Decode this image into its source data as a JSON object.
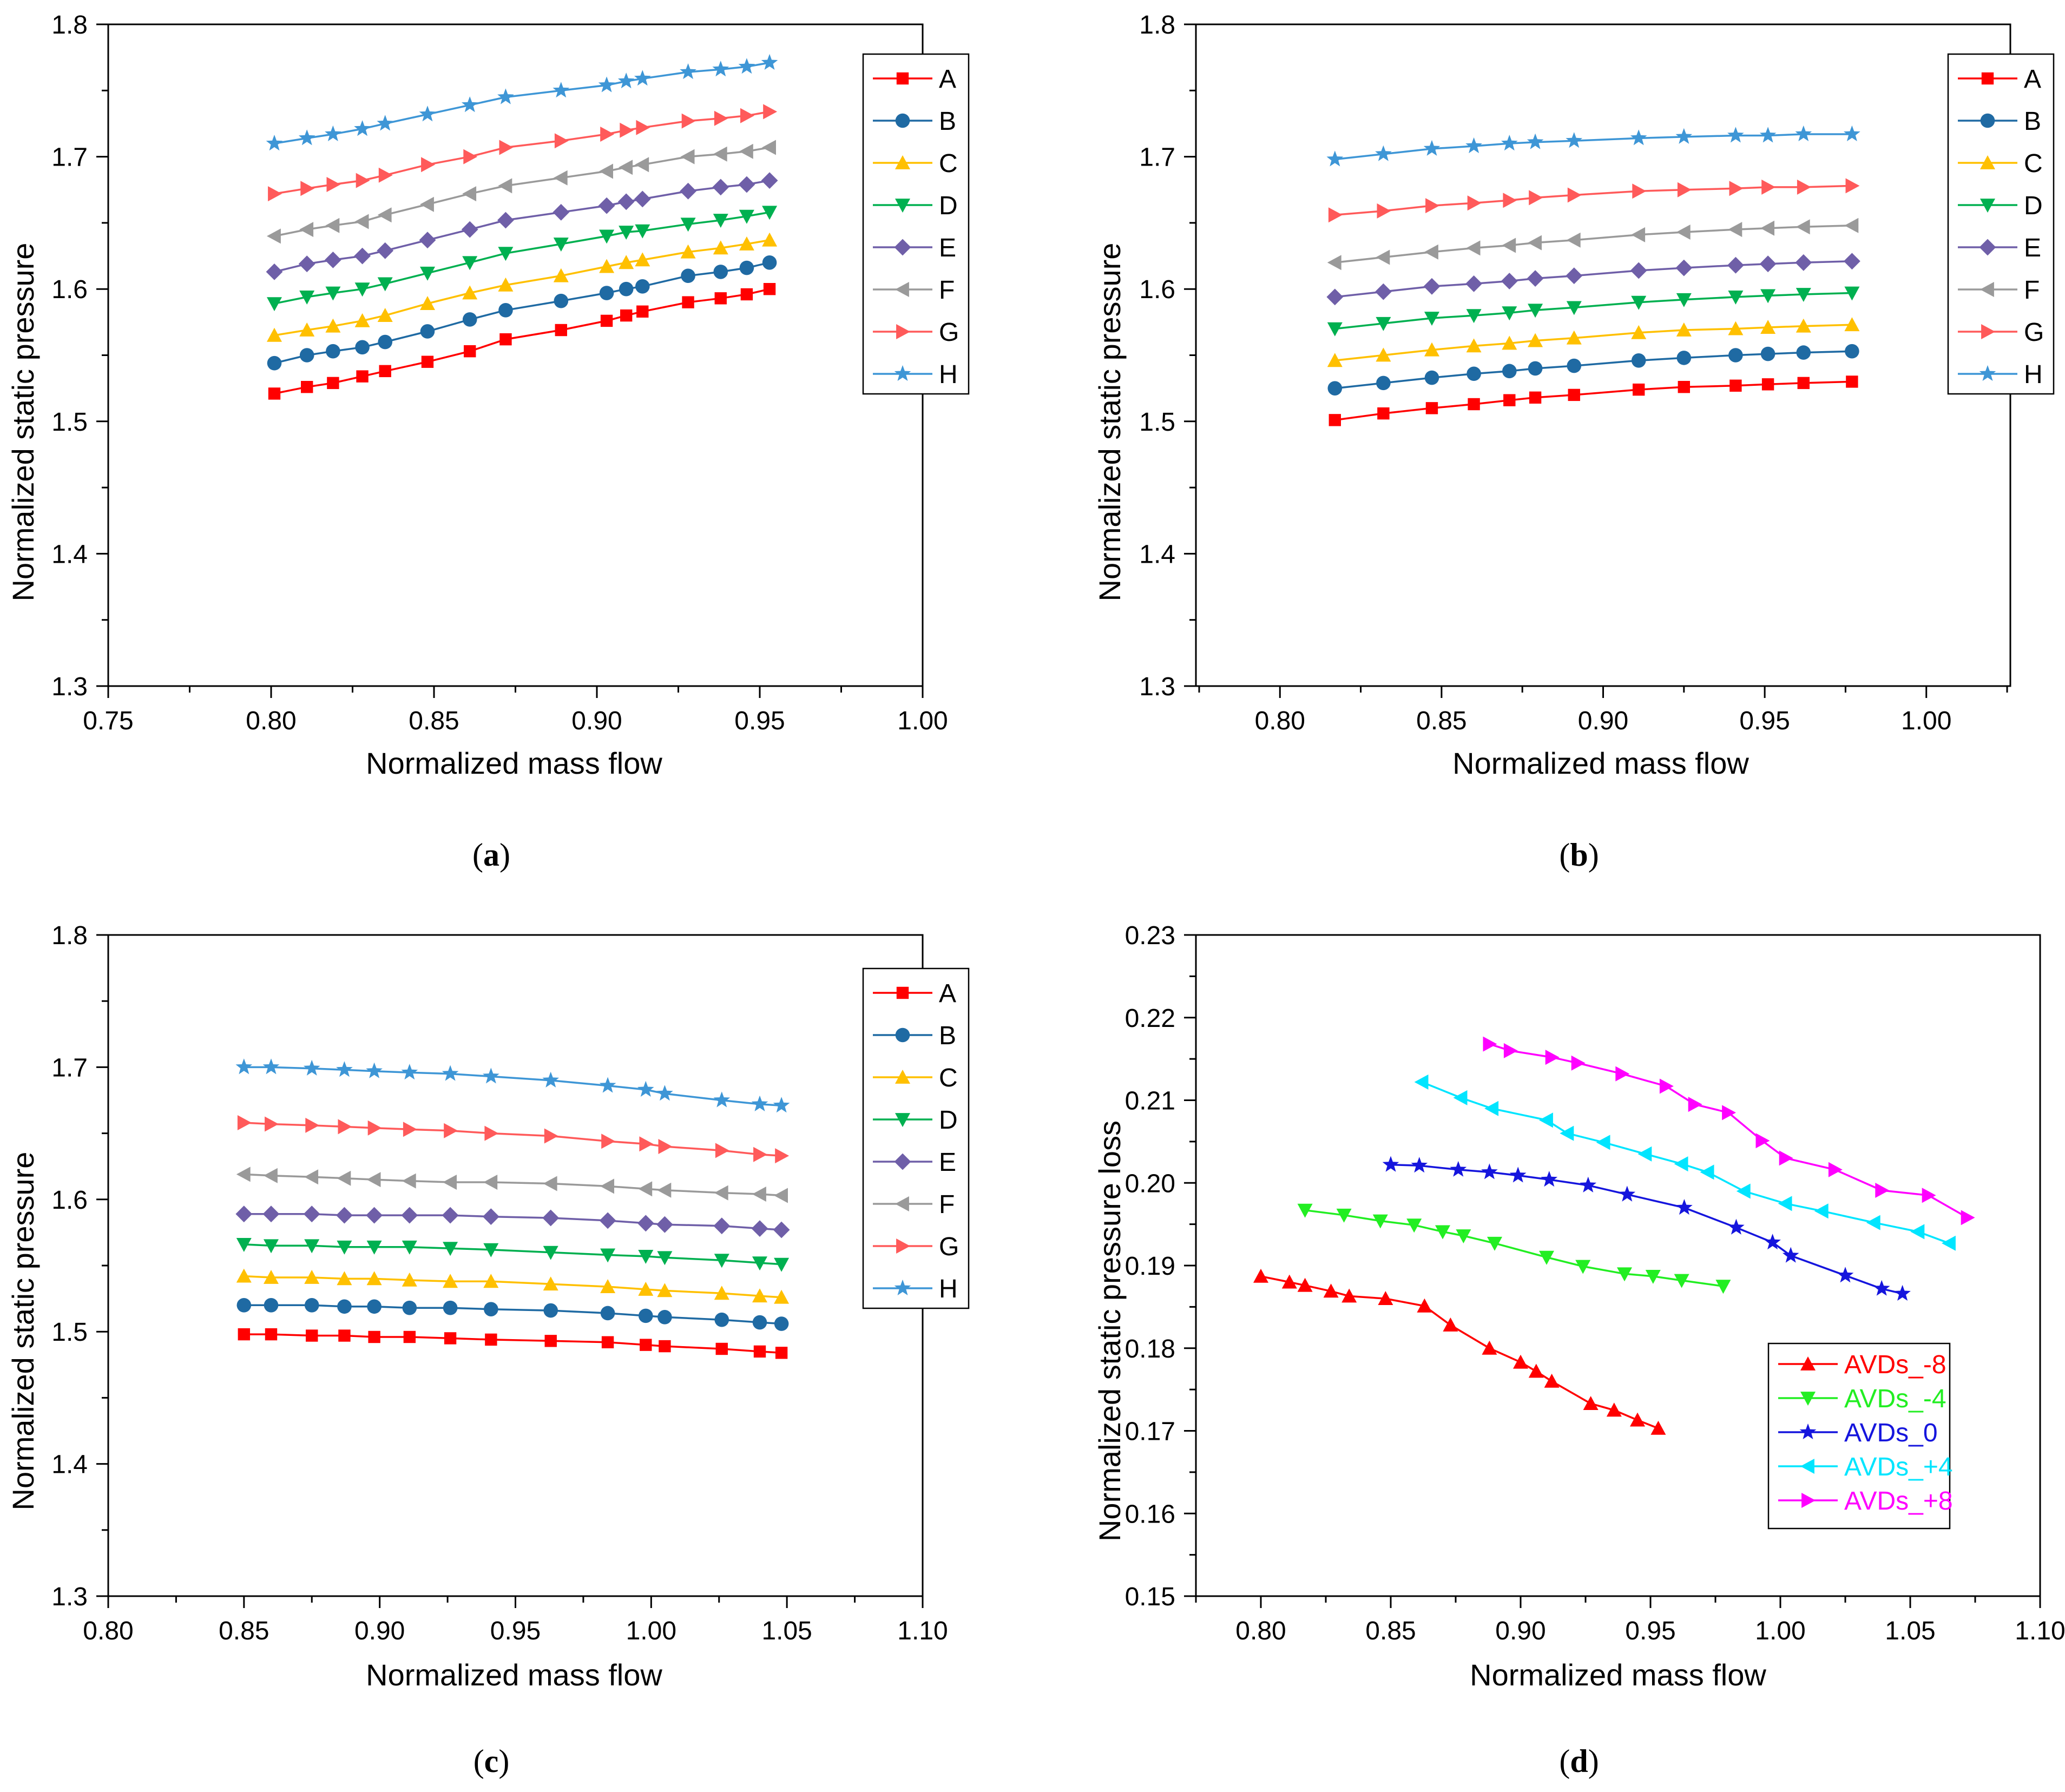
{
  "colors": {
    "A": "#ff0000",
    "B": "#1f6aa3",
    "C": "#ffc000",
    "D": "#00b050",
    "E": "#6f5fa8",
    "F": "#9a9a9a",
    "G": "#ff5a5a",
    "H": "#3e96d6",
    "AVDs_-8": "#ff0000",
    "AVDs_-4": "#22ee22",
    "AVDs_0": "#1515dd",
    "AVDs_+4": "#00e5ff",
    "AVDs_+8": "#ff00ff"
  },
  "chart_data": [
    {
      "id": "a",
      "type": "line",
      "caption": "a",
      "xlabel": "Normalized mass flow",
      "ylabel": "Normalized static pressure",
      "xlim": [
        0.75,
        1.0
      ],
      "ylim": [
        1.3,
        1.8
      ],
      "xticks": [
        "0.75",
        "0.80",
        "0.85",
        "0.90",
        "0.95",
        "1.00"
      ],
      "yticks": [
        "1.3",
        "1.4",
        "1.5",
        "1.6",
        "1.7",
        "1.8"
      ],
      "legend_position": "top-right",
      "x": [
        0.801,
        0.811,
        0.819,
        0.828,
        0.835,
        0.848,
        0.861,
        0.872,
        0.889,
        0.903,
        0.909,
        0.914,
        0.928,
        0.938,
        0.946,
        0.953
      ],
      "series": [
        {
          "name": "A",
          "marker": "square",
          "values": [
            1.521,
            1.526,
            1.529,
            1.534,
            1.538,
            1.545,
            1.553,
            1.562,
            1.569,
            1.576,
            1.58,
            1.583,
            1.59,
            1.593,
            1.596,
            1.6
          ]
        },
        {
          "name": "B",
          "marker": "circle",
          "values": [
            1.544,
            1.55,
            1.553,
            1.556,
            1.56,
            1.568,
            1.577,
            1.584,
            1.591,
            1.597,
            1.6,
            1.602,
            1.61,
            1.613,
            1.616,
            1.62
          ]
        },
        {
          "name": "C",
          "marker": "triangle-up",
          "values": [
            1.565,
            1.569,
            1.572,
            1.576,
            1.58,
            1.589,
            1.597,
            1.603,
            1.61,
            1.617,
            1.62,
            1.622,
            1.628,
            1.631,
            1.634,
            1.637
          ]
        },
        {
          "name": "D",
          "marker": "triangle-down",
          "values": [
            1.589,
            1.594,
            1.597,
            1.6,
            1.604,
            1.612,
            1.62,
            1.627,
            1.634,
            1.64,
            1.643,
            1.644,
            1.649,
            1.652,
            1.655,
            1.658
          ]
        },
        {
          "name": "E",
          "marker": "diamond",
          "values": [
            1.613,
            1.619,
            1.622,
            1.625,
            1.629,
            1.637,
            1.645,
            1.652,
            1.658,
            1.663,
            1.666,
            1.668,
            1.674,
            1.677,
            1.679,
            1.682
          ]
        },
        {
          "name": "F",
          "marker": "triangle-left",
          "values": [
            1.64,
            1.645,
            1.648,
            1.651,
            1.656,
            1.664,
            1.672,
            1.678,
            1.684,
            1.689,
            1.692,
            1.694,
            1.7,
            1.702,
            1.704,
            1.707
          ]
        },
        {
          "name": "G",
          "marker": "triangle-right",
          "values": [
            1.672,
            1.676,
            1.679,
            1.682,
            1.686,
            1.694,
            1.7,
            1.707,
            1.712,
            1.717,
            1.72,
            1.722,
            1.727,
            1.729,
            1.731,
            1.734
          ]
        },
        {
          "name": "H",
          "marker": "star",
          "values": [
            1.71,
            1.714,
            1.717,
            1.721,
            1.725,
            1.732,
            1.739,
            1.745,
            1.75,
            1.754,
            1.757,
            1.759,
            1.764,
            1.766,
            1.768,
            1.771
          ]
        }
      ]
    },
    {
      "id": "b",
      "type": "line",
      "caption": "b",
      "xlabel": "Normalized mass flow",
      "ylabel": "Normalized static pressure",
      "xlim": [
        0.774,
        1.026
      ],
      "ylim": [
        1.3,
        1.8
      ],
      "xticks": [
        "0.80",
        "0.85",
        "0.90",
        "0.95",
        "1.00"
      ],
      "yticks": [
        "1.3",
        "1.4",
        "1.5",
        "1.6",
        "1.7",
        "1.8"
      ],
      "legend_position": "top-right",
      "x": [
        0.817,
        0.832,
        0.847,
        0.86,
        0.871,
        0.879,
        0.891,
        0.911,
        0.925,
        0.941,
        0.951,
        0.962,
        0.977
      ],
      "series": [
        {
          "name": "A",
          "marker": "square",
          "values": [
            1.501,
            1.506,
            1.51,
            1.513,
            1.516,
            1.518,
            1.52,
            1.524,
            1.526,
            1.527,
            1.528,
            1.529,
            1.53
          ]
        },
        {
          "name": "B",
          "marker": "circle",
          "values": [
            1.525,
            1.529,
            1.533,
            1.536,
            1.538,
            1.54,
            1.542,
            1.546,
            1.548,
            1.55,
            1.551,
            1.552,
            1.553
          ]
        },
        {
          "name": "C",
          "marker": "triangle-up",
          "values": [
            1.546,
            1.55,
            1.554,
            1.557,
            1.559,
            1.561,
            1.563,
            1.567,
            1.569,
            1.57,
            1.571,
            1.572,
            1.573
          ]
        },
        {
          "name": "D",
          "marker": "triangle-down",
          "values": [
            1.57,
            1.574,
            1.578,
            1.58,
            1.582,
            1.584,
            1.586,
            1.59,
            1.592,
            1.594,
            1.595,
            1.596,
            1.597
          ]
        },
        {
          "name": "E",
          "marker": "diamond",
          "values": [
            1.594,
            1.598,
            1.602,
            1.604,
            1.606,
            1.608,
            1.61,
            1.614,
            1.616,
            1.618,
            1.619,
            1.62,
            1.621
          ]
        },
        {
          "name": "F",
          "marker": "triangle-left",
          "values": [
            1.62,
            1.624,
            1.628,
            1.631,
            1.633,
            1.635,
            1.637,
            1.641,
            1.643,
            1.645,
            1.646,
            1.647,
            1.648
          ]
        },
        {
          "name": "G",
          "marker": "triangle-right",
          "values": [
            1.656,
            1.659,
            1.663,
            1.665,
            1.667,
            1.669,
            1.671,
            1.674,
            1.675,
            1.676,
            1.677,
            1.677,
            1.678
          ]
        },
        {
          "name": "H",
          "marker": "star",
          "values": [
            1.698,
            1.702,
            1.706,
            1.708,
            1.71,
            1.711,
            1.712,
            1.714,
            1.715,
            1.716,
            1.716,
            1.717,
            1.717
          ]
        }
      ]
    },
    {
      "id": "c",
      "type": "line",
      "caption": "c",
      "xlabel": "Normalized mass flow",
      "ylabel": "Normalized static pressure",
      "xlim": [
        0.8,
        1.1
      ],
      "ylim": [
        1.3,
        1.8
      ],
      "xticks": [
        "0.80",
        "0.85",
        "0.90",
        "0.95",
        "1.00",
        "1.05",
        "1.10"
      ],
      "yticks": [
        "1.3",
        "1.4",
        "1.5",
        "1.6",
        "1.7",
        "1.8"
      ],
      "legend_position": "top-right",
      "x": [
        0.85,
        0.86,
        0.875,
        0.887,
        0.898,
        0.911,
        0.926,
        0.941,
        0.963,
        0.984,
        0.998,
        1.005,
        1.026,
        1.04,
        1.048
      ],
      "series": [
        {
          "name": "A",
          "marker": "square",
          "values": [
            1.498,
            1.498,
            1.497,
            1.497,
            1.496,
            1.496,
            1.495,
            1.494,
            1.493,
            1.492,
            1.49,
            1.489,
            1.487,
            1.485,
            1.484
          ]
        },
        {
          "name": "B",
          "marker": "circle",
          "values": [
            1.52,
            1.52,
            1.52,
            1.519,
            1.519,
            1.518,
            1.518,
            1.517,
            1.516,
            1.514,
            1.512,
            1.511,
            1.509,
            1.507,
            1.506
          ]
        },
        {
          "name": "C",
          "marker": "triangle-up",
          "values": [
            1.542,
            1.541,
            1.541,
            1.54,
            1.54,
            1.539,
            1.538,
            1.538,
            1.536,
            1.534,
            1.532,
            1.531,
            1.529,
            1.527,
            1.526
          ]
        },
        {
          "name": "D",
          "marker": "triangle-down",
          "values": [
            1.566,
            1.565,
            1.565,
            1.564,
            1.564,
            1.564,
            1.563,
            1.562,
            1.56,
            1.558,
            1.557,
            1.556,
            1.554,
            1.552,
            1.551
          ]
        },
        {
          "name": "E",
          "marker": "diamond",
          "values": [
            1.589,
            1.589,
            1.589,
            1.588,
            1.588,
            1.588,
            1.588,
            1.587,
            1.586,
            1.584,
            1.582,
            1.581,
            1.58,
            1.578,
            1.577
          ]
        },
        {
          "name": "F",
          "marker": "triangle-left",
          "values": [
            1.619,
            1.618,
            1.617,
            1.616,
            1.615,
            1.614,
            1.613,
            1.613,
            1.612,
            1.61,
            1.608,
            1.607,
            1.605,
            1.604,
            1.603
          ]
        },
        {
          "name": "G",
          "marker": "triangle-right",
          "values": [
            1.658,
            1.657,
            1.656,
            1.655,
            1.654,
            1.653,
            1.652,
            1.65,
            1.648,
            1.644,
            1.642,
            1.64,
            1.637,
            1.634,
            1.633
          ]
        },
        {
          "name": "H",
          "marker": "star",
          "values": [
            1.7,
            1.7,
            1.699,
            1.698,
            1.697,
            1.696,
            1.695,
            1.693,
            1.69,
            1.686,
            1.683,
            1.68,
            1.675,
            1.672,
            1.671
          ]
        }
      ]
    },
    {
      "id": "d",
      "type": "line",
      "caption": "d",
      "xlabel": "Normalized mass flow",
      "ylabel": "Normalized static pressure loss",
      "xlim": [
        0.775,
        1.1
      ],
      "ylim": [
        0.15,
        0.23
      ],
      "xticks": [
        "0.80",
        "0.85",
        "0.90",
        "0.95",
        "1.00",
        "1.05",
        "1.10"
      ],
      "yticks": [
        "0.15",
        "0.16",
        "0.17",
        "0.18",
        "0.19",
        "0.20",
        "0.21",
        "0.22",
        "0.23"
      ],
      "legend_position": "bottom-right",
      "series": [
        {
          "name": "AVDs_-8",
          "marker": "triangle-up",
          "points": [
            [
              0.8,
              0.1887
            ],
            [
              0.811,
              0.188
            ],
            [
              0.817,
              0.1876
            ],
            [
              0.827,
              0.1869
            ],
            [
              0.834,
              0.1863
            ],
            [
              0.848,
              0.186
            ],
            [
              0.863,
              0.1851
            ],
            [
              0.873,
              0.1828
            ],
            [
              0.888,
              0.18
            ],
            [
              0.9,
              0.1783
            ],
            [
              0.906,
              0.1772
            ],
            [
              0.912,
              0.176
            ],
            [
              0.927,
              0.1733
            ],
            [
              0.936,
              0.1725
            ],
            [
              0.945,
              0.1713
            ],
            [
              0.953,
              0.1703
            ]
          ]
        },
        {
          "name": "AVDs_-4",
          "marker": "triangle-down",
          "points": [
            [
              0.817,
              0.1967
            ],
            [
              0.832,
              0.1961
            ],
            [
              0.846,
              0.1954
            ],
            [
              0.859,
              0.1949
            ],
            [
              0.87,
              0.1941
            ],
            [
              0.878,
              0.1936
            ],
            [
              0.89,
              0.1927
            ],
            [
              0.91,
              0.191
            ],
            [
              0.924,
              0.1899
            ],
            [
              0.94,
              0.189
            ],
            [
              0.951,
              0.1887
            ],
            [
              0.962,
              0.1882
            ],
            [
              0.978,
              0.1875
            ]
          ]
        },
        {
          "name": "AVDs_0",
          "marker": "star",
          "points": [
            [
              0.85,
              0.2022
            ],
            [
              0.861,
              0.2021
            ],
            [
              0.876,
              0.2016
            ],
            [
              0.888,
              0.2013
            ],
            [
              0.899,
              0.2009
            ],
            [
              0.911,
              0.2004
            ],
            [
              0.926,
              0.1997
            ],
            [
              0.941,
              0.1986
            ],
            [
              0.963,
              0.197
            ],
            [
              0.983,
              0.1946
            ],
            [
              0.997,
              0.1928
            ],
            [
              1.004,
              0.1912
            ],
            [
              1.025,
              0.1888
            ],
            [
              1.039,
              0.1872
            ],
            [
              1.047,
              0.1866
            ]
          ]
        },
        {
          "name": "AVDs_+4",
          "marker": "triangle-left",
          "points": [
            [
              0.862,
              0.2122
            ],
            [
              0.877,
              0.2103
            ],
            [
              0.889,
              0.209
            ],
            [
              0.91,
              0.2076
            ],
            [
              0.918,
              0.206
            ],
            [
              0.932,
              0.2049
            ],
            [
              0.948,
              0.2035
            ],
            [
              0.962,
              0.2023
            ],
            [
              0.972,
              0.2013
            ],
            [
              0.986,
              0.199
            ],
            [
              1.002,
              0.1975
            ],
            [
              1.016,
              0.1966
            ],
            [
              1.036,
              0.1952
            ],
            [
              1.053,
              0.1941
            ],
            [
              1.065,
              0.1927
            ]
          ]
        },
        {
          "name": "AVDs_+8",
          "marker": "triangle-right",
          "points": [
            [
              0.888,
              0.2168
            ],
            [
              0.896,
              0.216
            ],
            [
              0.912,
              0.2152
            ],
            [
              0.922,
              0.2145
            ],
            [
              0.939,
              0.2132
            ],
            [
              0.956,
              0.2117
            ],
            [
              0.967,
              0.2095
            ],
            [
              0.98,
              0.2085
            ],
            [
              0.993,
              0.2051
            ],
            [
              1.002,
              0.203
            ],
            [
              1.021,
              0.2016
            ],
            [
              1.039,
              0.1991
            ],
            [
              1.057,
              0.1985
            ],
            [
              1.072,
              0.1958
            ]
          ]
        }
      ]
    }
  ]
}
